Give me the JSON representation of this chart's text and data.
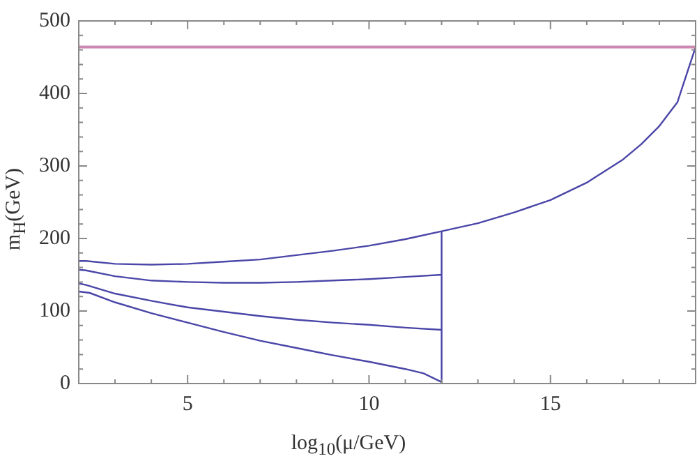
{
  "chart_data": {
    "type": "line",
    "xlabel": "log$_{10}$(μ/GeV)",
    "ylabel": "m$_{H}$(GeV)",
    "xlim": [
      2,
      19
    ],
    "ylim": [
      0,
      500
    ],
    "xticks": [
      {
        "value": 2,
        "label": null
      },
      {
        "value": 3,
        "label": null
      },
      {
        "value": 4,
        "label": null
      },
      5,
      {
        "value": 6,
        "label": null
      },
      {
        "value": 7,
        "label": null
      },
      {
        "value": 8,
        "label": null
      },
      {
        "value": 9,
        "label": null
      },
      10,
      {
        "value": 11,
        "label": null
      },
      {
        "value": 12,
        "label": null
      },
      {
        "value": 13,
        "label": null
      },
      {
        "value": 14,
        "label": null
      },
      15,
      {
        "value": 16,
        "label": null
      },
      {
        "value": 17,
        "label": null
      },
      {
        "value": 18,
        "label": null
      }
    ],
    "yticks": [
      0,
      {
        "value": 20,
        "label": null
      },
      {
        "value": 40,
        "label": null
      },
      {
        "value": 60,
        "label": null
      },
      {
        "value": 80,
        "label": null
      },
      100,
      {
        "value": 120,
        "label": null
      },
      {
        "value": 140,
        "label": null
      },
      {
        "value": 160,
        "label": null
      },
      {
        "value": 180,
        "label": null
      },
      200,
      {
        "value": 220,
        "label": null
      },
      {
        "value": 240,
        "label": null
      },
      {
        "value": 260,
        "label": null
      },
      {
        "value": 280,
        "label": null
      },
      300,
      {
        "value": 320,
        "label": null
      },
      {
        "value": 340,
        "label": null
      },
      {
        "value": 360,
        "label": null
      },
      {
        "value": 380,
        "label": null
      },
      400,
      {
        "value": 420,
        "label": null
      },
      {
        "value": 440,
        "label": null
      },
      {
        "value": 460,
        "label": null
      },
      {
        "value": 480,
        "label": null
      },
      500
    ],
    "grid": false,
    "legend": false,
    "marker": "none",
    "line_style": "solid",
    "ref_lines": [
      {
        "axis": "y",
        "value": 464,
        "color": "#cc88b0"
      }
    ],
    "series": [
      {
        "color": "#4a46a8",
        "x": [
          2,
          2.2,
          3,
          4,
          5,
          6,
          7,
          8,
          9,
          10,
          11,
          12,
          13,
          14,
          15,
          16,
          17,
          17.5,
          18,
          18.5,
          19
        ],
        "values": [
          169,
          169,
          165,
          164,
          165,
          168,
          171,
          177,
          183,
          190,
          199,
          210,
          221,
          236,
          253,
          277,
          309,
          330,
          355,
          388,
          464
        ]
      },
      {
        "color": "#4a46a8",
        "x": [
          2,
          2.2,
          3,
          4,
          5,
          6,
          7,
          8,
          9,
          10,
          11,
          12
        ],
        "values": [
          157,
          156,
          148,
          142,
          140,
          139,
          139,
          140,
          142,
          144,
          147,
          150
        ]
      },
      {
        "color": "#4a46a8",
        "x": [
          2,
          2.2,
          3,
          4,
          5,
          6,
          7,
          8,
          9,
          10,
          11,
          12
        ],
        "values": [
          138,
          136,
          124,
          114,
          105,
          99,
          93,
          88,
          84,
          81,
          77,
          74
        ]
      },
      {
        "color": "#4a46a8",
        "x": [
          2,
          2.3,
          3,
          4,
          5,
          6,
          7,
          8,
          9,
          10,
          11,
          11.5,
          12
        ],
        "values": [
          127,
          125,
          112,
          97,
          84,
          71,
          59,
          49,
          39,
          30,
          20,
          14,
          2
        ]
      },
      {
        "color": "#4a46a8",
        "x": [
          12,
          12
        ],
        "values": [
          0,
          210
        ]
      }
    ]
  }
}
